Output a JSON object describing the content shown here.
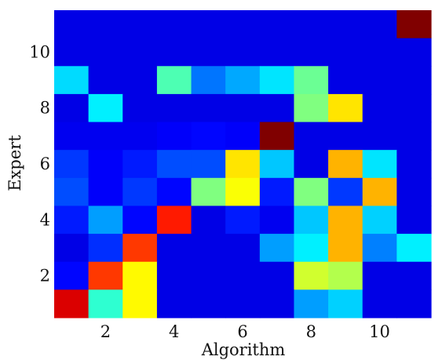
{
  "chart_data": {
    "type": "heatmap",
    "xlabel": "Algorithm",
    "ylabel": "Expert",
    "x_ticks": [
      2,
      4,
      6,
      8,
      10
    ],
    "y_ticks": [
      2,
      4,
      6,
      8,
      10
    ],
    "x_range": [
      1,
      11
    ],
    "y_range": [
      1,
      11
    ],
    "colormap": "jet",
    "value_range": [
      0,
      1
    ],
    "rows_top_to_bottom": [
      11,
      10,
      9,
      8,
      7,
      6,
      5,
      4,
      3,
      2,
      1
    ],
    "values": [
      [
        0.1,
        0.1,
        0.1,
        0.1,
        0.1,
        0.1,
        0.1,
        0.1,
        0.1,
        0.1,
        1.0
      ],
      [
        0.1,
        0.1,
        0.1,
        0.1,
        0.1,
        0.1,
        0.1,
        0.1,
        0.1,
        0.1,
        0.1
      ],
      [
        0.34,
        0.1,
        0.1,
        0.45,
        0.24,
        0.29,
        0.35,
        0.48,
        0.1,
        0.1,
        0.1
      ],
      [
        0.1,
        0.36,
        0.1,
        0.1,
        0.1,
        0.1,
        0.1,
        0.5,
        0.65,
        0.1,
        0.1
      ],
      [
        0.11,
        0.11,
        0.11,
        0.12,
        0.13,
        0.12,
        1.0,
        0.1,
        0.1,
        0.1,
        0.1
      ],
      [
        0.18,
        0.12,
        0.15,
        0.2,
        0.2,
        0.65,
        0.32,
        0.1,
        0.7,
        0.35,
        0.1
      ],
      [
        0.2,
        0.12,
        0.18,
        0.13,
        0.5,
        0.62,
        0.15,
        0.5,
        0.18,
        0.7,
        0.1
      ],
      [
        0.15,
        0.28,
        0.13,
        0.85,
        0.1,
        0.15,
        0.11,
        0.32,
        0.7,
        0.33,
        0.1
      ],
      [
        0.1,
        0.17,
        0.82,
        0.1,
        0.1,
        0.1,
        0.28,
        0.36,
        0.7,
        0.25,
        0.36
      ],
      [
        0.13,
        0.82,
        0.63,
        0.1,
        0.1,
        0.1,
        0.1,
        0.58,
        0.55,
        0.1,
        0.1
      ],
      [
        0.91,
        0.42,
        0.63,
        0.1,
        0.1,
        0.1,
        0.1,
        0.28,
        0.33,
        0.1,
        0.1
      ]
    ]
  }
}
